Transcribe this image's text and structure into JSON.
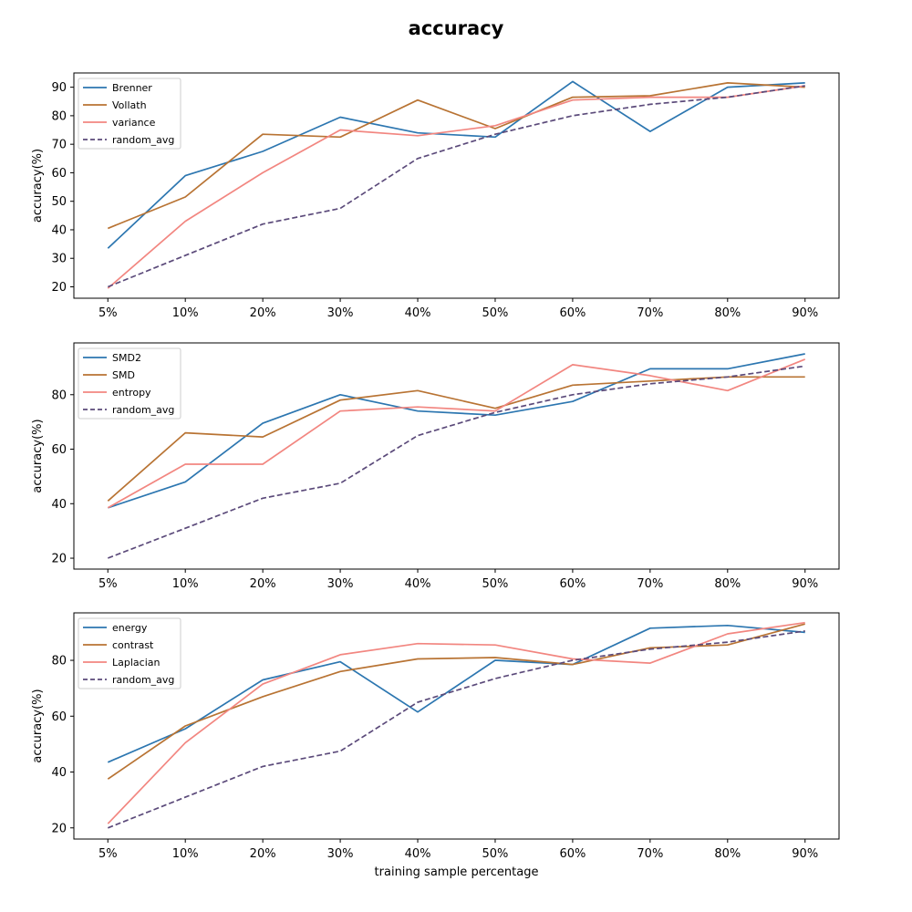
{
  "chart_data": {
    "title": "accuracy",
    "colors": {
      "blue": "#2c76b0",
      "brown": "#b87333",
      "pink": "#f28680",
      "purple_dashed": "#5b4a7a"
    },
    "panels": [
      {
        "type": "line",
        "categories": [
          "5%",
          "10%",
          "20%",
          "30%",
          "40%",
          "50%",
          "60%",
          "70%",
          "80%",
          "90%"
        ],
        "ylabel": "accuracy(%)",
        "xlabel": "",
        "ylim": [
          16,
          95
        ],
        "yticks": [
          20,
          30,
          40,
          50,
          60,
          70,
          80,
          90
        ],
        "legend": "top-left",
        "series": [
          {
            "name": "Brenner",
            "color": "#2c76b0",
            "dashed": false,
            "values": [
              33.5,
              59,
              67.5,
              79.5,
              74,
              72.5,
              92,
              74.5,
              90,
              91.5
            ]
          },
          {
            "name": "Vollath",
            "color": "#b87333",
            "dashed": false,
            "values": [
              40.5,
              51.5,
              73.5,
              72.5,
              85.5,
              75.5,
              86.5,
              87,
              91.5,
              90
            ]
          },
          {
            "name": "variance",
            "color": "#f28680",
            "dashed": false,
            "values": [
              19.5,
              43,
              60,
              75,
              73,
              76.5,
              85.5,
              86.5,
              86.5,
              90.5
            ]
          },
          {
            "name": "random_avg",
            "color": "#5b4a7a",
            "dashed": true,
            "values": [
              20,
              31,
              42,
              47.5,
              65,
              73.5,
              80,
              84,
              86.5,
              90.5
            ]
          }
        ]
      },
      {
        "type": "line",
        "categories": [
          "5%",
          "10%",
          "20%",
          "30%",
          "40%",
          "50%",
          "60%",
          "70%",
          "80%",
          "90%"
        ],
        "ylabel": "accuracy(%)",
        "xlabel": "",
        "ylim": [
          16,
          99
        ],
        "yticks": [
          20,
          40,
          60,
          80
        ],
        "legend": "top-left",
        "series": [
          {
            "name": "SMD2",
            "color": "#2c76b0",
            "dashed": false,
            "values": [
              38.5,
              48,
              69.5,
              80,
              74,
              72.5,
              77.5,
              89.5,
              89.5,
              95
            ]
          },
          {
            "name": "SMD",
            "color": "#b87333",
            "dashed": false,
            "values": [
              41,
              66,
              64.5,
              78,
              81.5,
              75,
              83.5,
              85,
              86.5,
              86.5
            ]
          },
          {
            "name": "entropy",
            "color": "#f28680",
            "dashed": false,
            "values": [
              38.5,
              54.5,
              54.5,
              74,
              75.5,
              74,
              91,
              87,
              81.5,
              93
            ]
          },
          {
            "name": "random_avg",
            "color": "#5b4a7a",
            "dashed": true,
            "values": [
              20,
              31,
              42,
              47.5,
              65,
              73.5,
              80,
              84,
              86.5,
              90.5
            ]
          }
        ]
      },
      {
        "type": "line",
        "categories": [
          "5%",
          "10%",
          "20%",
          "30%",
          "40%",
          "50%",
          "60%",
          "70%",
          "80%",
          "90%"
        ],
        "ylabel": "accuracy(%)",
        "xlabel": "training sample percentage",
        "ylim": [
          16,
          97
        ],
        "yticks": [
          20,
          40,
          60,
          80
        ],
        "legend": "top-left",
        "series": [
          {
            "name": "energy",
            "color": "#2c76b0",
            "dashed": false,
            "values": [
              43.5,
              55.5,
              73,
              79.5,
              61.5,
              80,
              78.5,
              91.5,
              92.5,
              90
            ]
          },
          {
            "name": "contrast",
            "color": "#b87333",
            "dashed": false,
            "values": [
              37.5,
              56.5,
              67,
              76,
              80.5,
              81,
              78.5,
              84.5,
              85.5,
              93
            ]
          },
          {
            "name": "Laplacian",
            "color": "#f28680",
            "dashed": false,
            "values": [
              21.5,
              50.5,
              71.5,
              82,
              86,
              85.5,
              80.5,
              79,
              89.5,
              93.5
            ]
          },
          {
            "name": "random_avg",
            "color": "#5b4a7a",
            "dashed": true,
            "values": [
              20,
              31,
              42,
              47.5,
              65,
              73.5,
              80,
              84,
              86.5,
              90.5
            ]
          }
        ]
      }
    ]
  }
}
